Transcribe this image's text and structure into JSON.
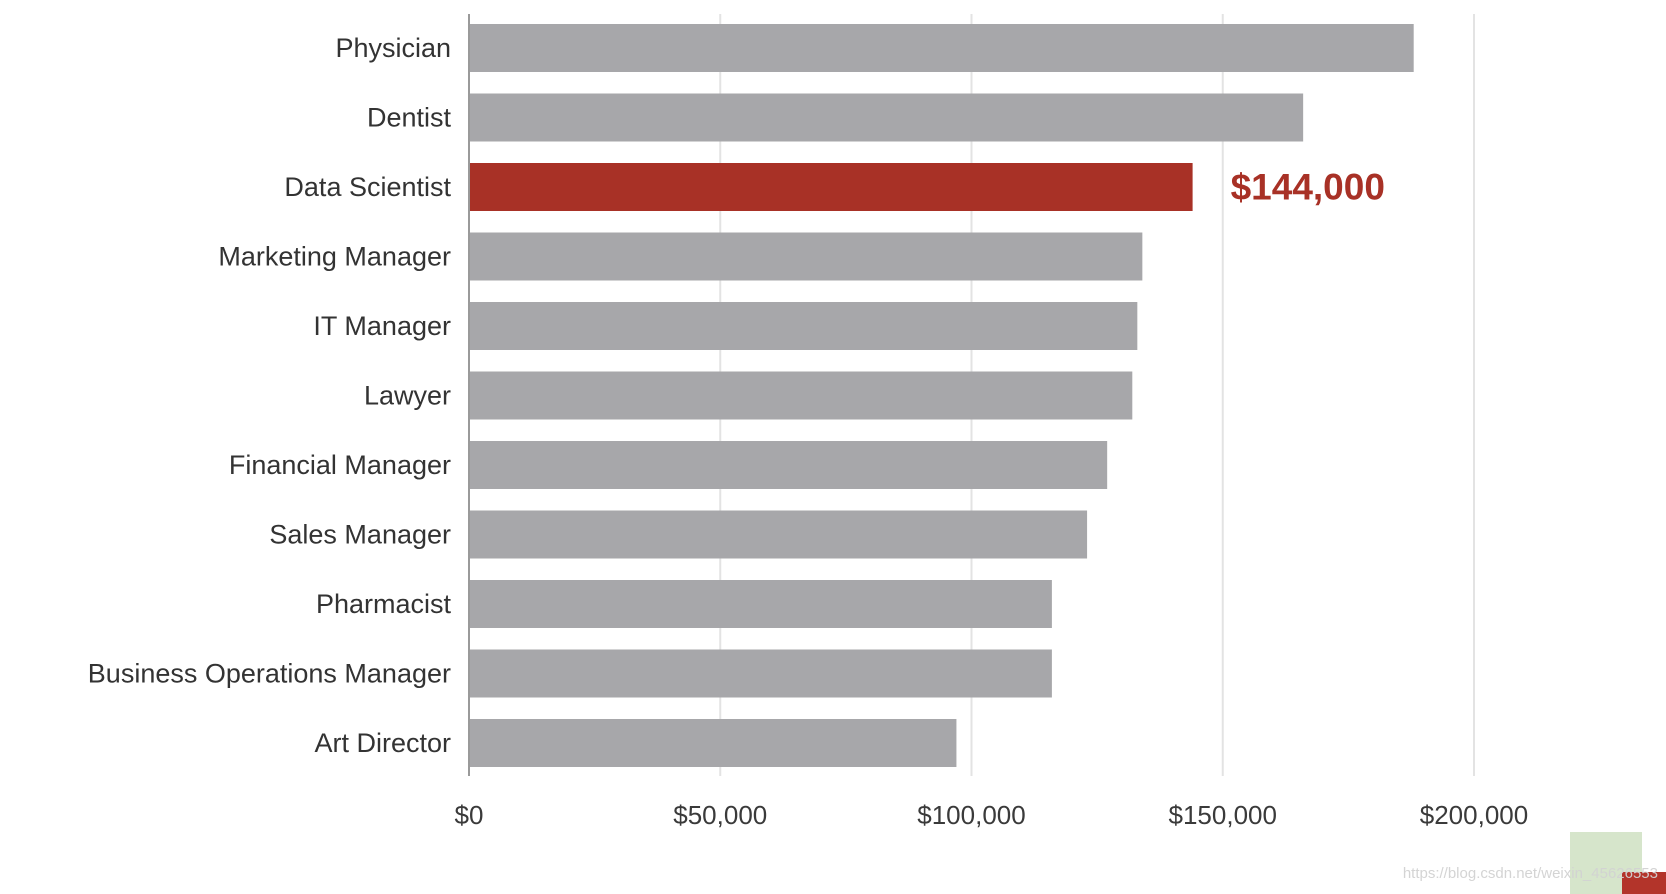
{
  "chart_data": {
    "type": "bar",
    "orientation": "horizontal",
    "categories": [
      "Physician",
      "Dentist",
      "Data Scientist",
      "Marketing Manager",
      "IT Manager",
      "Lawyer",
      "Financial Manager",
      "Sales Manager",
      "Pharmacist",
      "Business Operations Manager",
      "Art Director"
    ],
    "values": [
      188000,
      166000,
      144000,
      134000,
      133000,
      132000,
      127000,
      123000,
      116000,
      116000,
      97000
    ],
    "highlight_index": 2,
    "highlight_label": "$144,000",
    "xlim": [
      0,
      200000
    ],
    "xticks": [
      0,
      50000,
      100000,
      150000,
      200000
    ],
    "xtick_labels": [
      "$0",
      "$50,000",
      "$100,000",
      "$150,000",
      "$200,000"
    ],
    "title": "",
    "xlabel": "",
    "ylabel": "",
    "grid": "vertical",
    "legend": "none",
    "colors": {
      "bar": "#a7a7aa",
      "highlight": "#a83126",
      "grid": "#e3e3e3",
      "axis": "#9a9a9a"
    }
  },
  "watermark": {
    "text": "https://blog.csdn.net/weixin_45626553"
  }
}
